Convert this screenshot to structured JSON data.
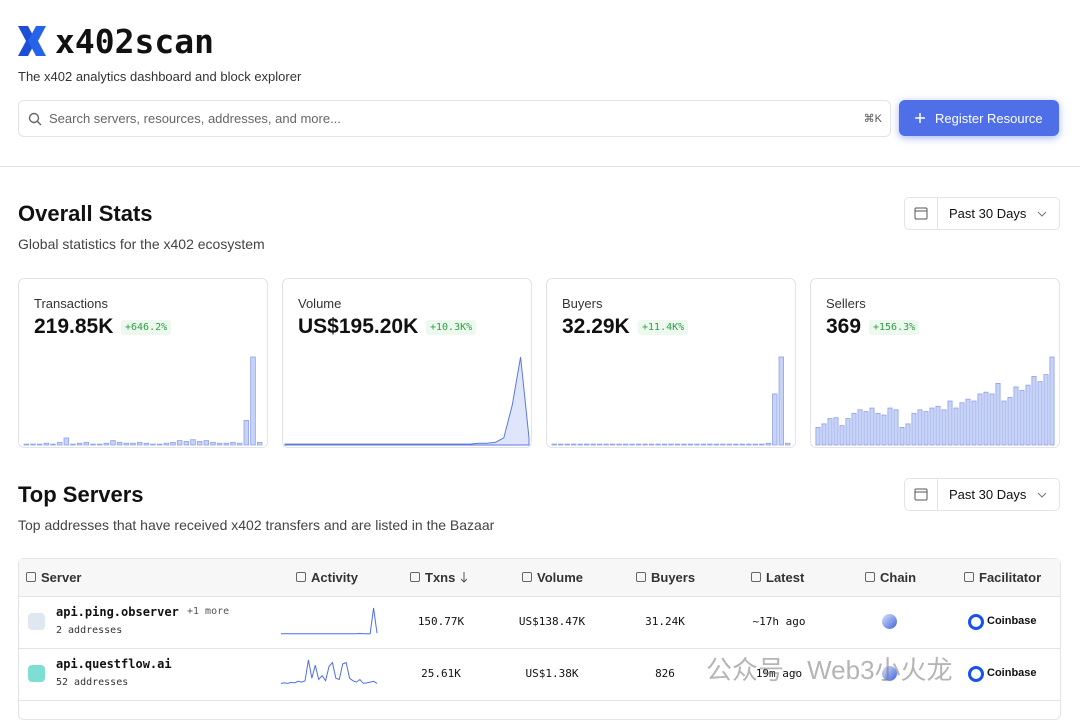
{
  "header": {
    "logo": "x402scan",
    "tagline": "The x402 analytics dashboard and block explorer",
    "search_placeholder": "Search servers, resources, addresses, and more...",
    "shortcut": "⌘K",
    "button": "Register Resource"
  },
  "overall_stats": {
    "title": "Overall Stats",
    "subtitle": "Global statistics for the x402 ecosystem",
    "range": "Past 30 Days",
    "cards": [
      {
        "label": "Transactions",
        "value": "219.85K",
        "change": "+646.2%",
        "chart": "bar",
        "values": [
          1,
          1,
          1,
          2,
          1,
          3,
          8,
          1,
          2,
          3,
          1,
          1,
          2,
          5,
          3,
          2,
          2,
          3,
          2,
          1,
          1,
          2,
          3,
          5,
          4,
          6,
          4,
          5,
          3,
          2,
          2,
          3,
          2,
          28,
          100,
          3
        ]
      },
      {
        "label": "Volume",
        "value": "US$195.20K",
        "change": "+10.3K%",
        "chart": "area",
        "values": [
          1,
          1,
          1,
          1,
          1,
          1,
          1,
          1,
          1,
          1,
          1,
          1,
          1,
          1,
          1,
          1,
          1,
          1,
          1,
          1,
          1,
          1,
          1,
          2,
          2,
          3,
          8,
          45,
          100,
          8
        ]
      },
      {
        "label": "Buyers",
        "value": "32.29K",
        "change": "+11.4K%",
        "chart": "bar",
        "values": [
          1,
          1,
          1,
          1,
          1,
          1,
          1,
          1,
          1,
          1,
          1,
          1,
          1,
          1,
          1,
          1,
          1,
          1,
          1,
          1,
          1,
          1,
          1,
          1,
          1,
          1,
          1,
          1,
          1,
          1,
          1,
          1,
          1,
          2,
          58,
          100,
          2
        ]
      },
      {
        "label": "Sellers",
        "value": "369",
        "change": "+156.3%",
        "chart": "bar",
        "values": [
          20,
          24,
          30,
          31,
          22,
          30,
          36,
          40,
          38,
          42,
          36,
          34,
          42,
          40,
          20,
          24,
          36,
          40,
          38,
          42,
          44,
          40,
          50,
          42,
          48,
          52,
          50,
          58,
          60,
          58,
          70,
          50,
          54,
          66,
          62,
          68,
          78,
          72,
          80,
          100
        ]
      }
    ]
  },
  "top_servers": {
    "title": "Top Servers",
    "subtitle": "Top addresses that have received x402 transfers and are listed in the Bazaar",
    "range": "Past 30 Days",
    "columns": [
      "Server",
      "Activity",
      "Txns",
      "Volume",
      "Buyers",
      "Latest",
      "Chain",
      "Facilitator"
    ],
    "rows": [
      {
        "name": "api.ping.observer",
        "more": "+1 more",
        "addresses": "2 addresses",
        "activity": [
          1,
          1,
          1,
          1,
          1,
          1,
          1,
          1,
          1,
          1,
          1,
          1,
          1,
          1,
          1,
          1,
          1,
          1,
          1,
          1,
          1,
          1,
          1,
          2,
          1,
          1,
          1,
          100,
          3
        ],
        "txns": "150.77K",
        "volume": "US$138.47K",
        "buyers": "31.24K",
        "latest": "~17h ago",
        "facilitator": "Coinbase"
      },
      {
        "name": "api.questflow.ai",
        "more": null,
        "addresses": "52 addresses",
        "activity": [
          10,
          12,
          10,
          14,
          12,
          18,
          15,
          20,
          100,
          30,
          80,
          25,
          40,
          20,
          75,
          90,
          30,
          25,
          85,
          90,
          30,
          20,
          15,
          25,
          10,
          12,
          15,
          18,
          10
        ],
        "txns": "25.61K",
        "volume": "US$1.38K",
        "buyers": "826",
        "latest": "19m ago",
        "facilitator": "Coinbase"
      }
    ]
  },
  "watermark": "公众号 · Web3小火龙"
}
